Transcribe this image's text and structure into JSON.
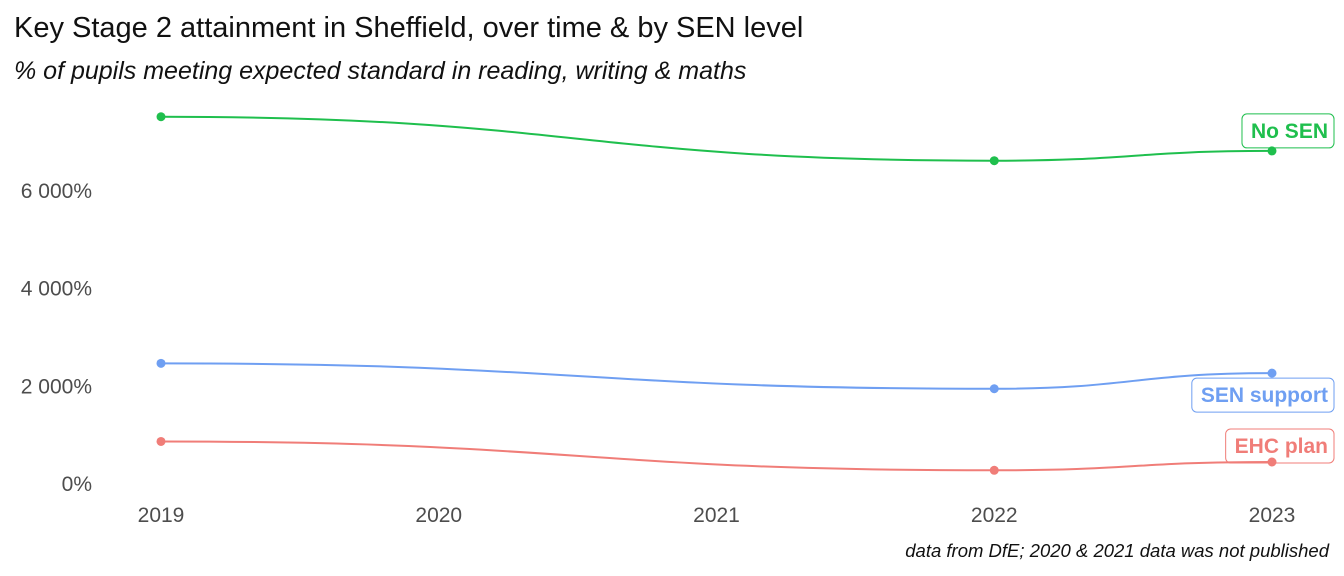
{
  "chart_data": {
    "type": "line",
    "title": "Key Stage 2 attainment in Sheffield, over time & by SEN level",
    "subtitle": "% of pupils meeting expected standard in reading, writing & maths",
    "caption": "data from DfE; 2020 & 2021 data was not published",
    "x": [
      2019,
      2020,
      2021,
      2022,
      2023
    ],
    "x_tick_labels": [
      "2019",
      "2020",
      "2021",
      "2022",
      "2023"
    ],
    "y_tick_values": [
      0,
      2000,
      4000,
      6000
    ],
    "y_tick_labels": [
      "0%",
      "2 000%",
      "4 000%",
      "6 000%"
    ],
    "ylim": [
      -100,
      7700
    ],
    "grid": false,
    "legend": "direct labels at line ends (right)",
    "series": [
      {
        "name": "No SEN",
        "color": "#1fbf4d",
        "points": [
          [
            2019,
            7500
          ],
          [
            2022,
            6600
          ],
          [
            2023,
            6800
          ]
        ]
      },
      {
        "name": "SEN support",
        "color": "#6f9ff2",
        "points": [
          [
            2019,
            2450
          ],
          [
            2022,
            1930
          ],
          [
            2023,
            2250
          ]
        ]
      },
      {
        "name": "EHC plan",
        "color": "#f07d78",
        "points": [
          [
            2019,
            850
          ],
          [
            2022,
            260
          ],
          [
            2023,
            430
          ]
        ]
      }
    ]
  }
}
